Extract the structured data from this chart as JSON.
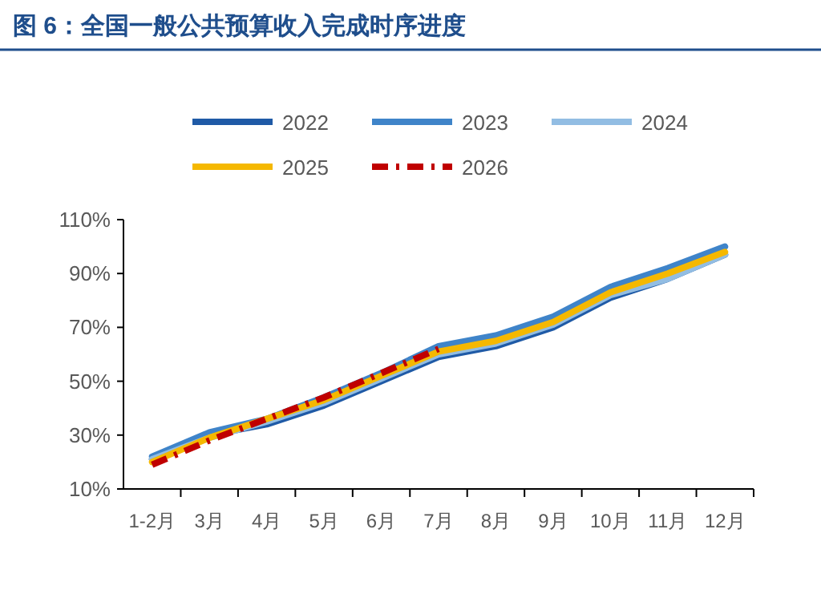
{
  "chart_data": {
    "type": "line",
    "title": "图 6：全国一般公共预算收入完成时序进度",
    "categories": [
      "1-2月",
      "3月",
      "4月",
      "5月",
      "6月",
      "7月",
      "8月",
      "9月",
      "10月",
      "11月",
      "12月"
    ],
    "series": [
      {
        "name": "2022",
        "color": "#1f5aa6",
        "values": [
          21,
          30,
          34,
          41,
          50,
          59,
          63,
          70,
          81,
          88,
          97
        ]
      },
      {
        "name": "2023",
        "color": "#3f84c9",
        "values": [
          22,
          31,
          36,
          44,
          53,
          63,
          67,
          74,
          85,
          92,
          100
        ]
      },
      {
        "name": "2024",
        "color": "#92bde3",
        "values": [
          21,
          29,
          35,
          42,
          51,
          60,
          64,
          71,
          82,
          88,
          97
        ]
      },
      {
        "name": "2025",
        "color": "#f5b800",
        "values": [
          20,
          29,
          36,
          43,
          52,
          61,
          65,
          72,
          83,
          90,
          98
        ]
      },
      {
        "name": "2026",
        "color": "#c00000",
        "line_style": "dashed",
        "values": [
          19,
          28,
          36,
          44,
          53,
          62,
          null,
          null,
          null,
          null,
          null
        ]
      }
    ],
    "ylim": [
      10,
      110
    ],
    "yticks": [
      {
        "value": 10,
        "label": "10%"
      },
      {
        "value": 30,
        "label": "30%"
      },
      {
        "value": 50,
        "label": "50%"
      },
      {
        "value": 70,
        "label": "70%"
      },
      {
        "value": 90,
        "label": "90%"
      },
      {
        "value": 110,
        "label": "110%"
      }
    ],
    "legend": "top",
    "grid": false,
    "marker": "none"
  }
}
